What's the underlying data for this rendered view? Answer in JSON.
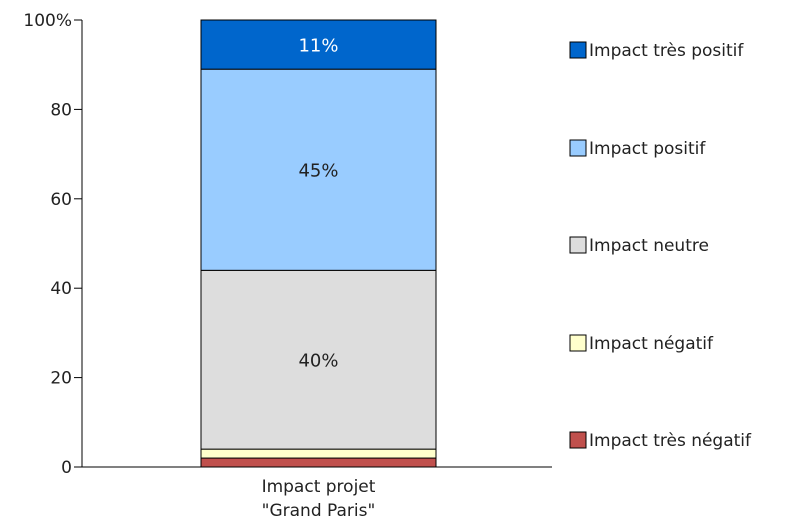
{
  "chart_data": {
    "type": "bar",
    "stacked": true,
    "categories": [
      "Impact projet \"Grand Paris\""
    ],
    "category_label_lines": [
      "Impact projet",
      "\"Grand Paris\""
    ],
    "series": [
      {
        "name": "Impact très négatif",
        "values": [
          2
        ],
        "color": "#c0504d",
        "label": ""
      },
      {
        "name": "Impact négatif",
        "values": [
          2
        ],
        "color": "#ffffcc",
        "label": ""
      },
      {
        "name": "Impact neutre",
        "values": [
          40
        ],
        "color": "#dddddd",
        "label": "40%"
      },
      {
        "name": "Impact positif",
        "values": [
          45
        ],
        "color": "#99ccff",
        "label": "45%"
      },
      {
        "name": "Impact très positif",
        "values": [
          11
        ],
        "color": "#0066cc",
        "label": "11%"
      }
    ],
    "ylim": [
      0,
      100
    ],
    "yticks": [
      "0",
      "20",
      "40",
      "60",
      "80",
      "100%"
    ],
    "ytick_values": [
      0,
      20,
      40,
      60,
      80,
      100
    ],
    "legend": [
      "Impact très positif",
      "Impact positif",
      "Impact neutre",
      "Impact négatif",
      "Impact très négatif"
    ],
    "legend_position": "right",
    "grid": false
  }
}
